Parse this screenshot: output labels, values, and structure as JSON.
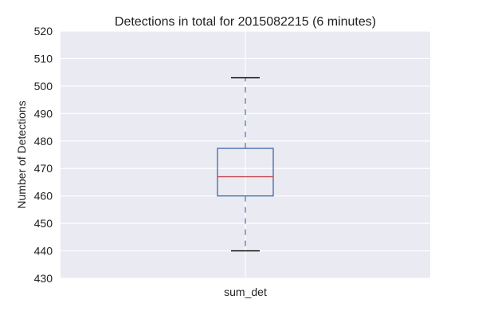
{
  "chart_data": {
    "type": "box",
    "title": "Detections in total for 2015082215 (6 minutes)",
    "xlabel": "",
    "ylabel": "Number of Detections",
    "categories": [
      "sum_det"
    ],
    "series": [
      {
        "min": 440,
        "q1": 460,
        "median": 467,
        "q3": 477.3,
        "max": 503
      }
    ],
    "ylim": [
      430,
      520
    ],
    "yticks": [
      430,
      440,
      450,
      460,
      470,
      480,
      490,
      500,
      510,
      520
    ],
    "grid": true,
    "legend": "none",
    "colors": {
      "background": "#eaeaf2",
      "grid": "#ffffff",
      "box": "#4c72b0",
      "median": "#c44e52",
      "whisker": "#4c72b0",
      "cap": "#000000"
    }
  }
}
